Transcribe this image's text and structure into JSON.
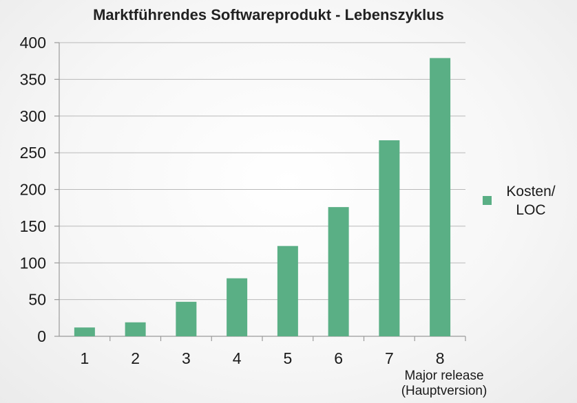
{
  "chart_data": {
    "type": "bar",
    "title": "Marktführendes Softwareprodukt - Lebenszyklus",
    "categories": [
      "1",
      "2",
      "3",
      "4",
      "5",
      "6",
      "7",
      "8"
    ],
    "series": [
      {
        "name": "Kosten/ LOC",
        "name_lines": [
          "Kosten/",
          "LOC"
        ],
        "values": [
          12,
          19,
          47,
          79,
          123,
          176,
          267,
          379
        ],
        "color": "#5aaf85"
      }
    ],
    "xlabel": "Major release (Hauptversion)",
    "xlabel_lines": [
      "Major release",
      "(Hauptversion)"
    ],
    "ylabel": "",
    "ylim": [
      0,
      400
    ],
    "yticks": [
      0,
      50,
      100,
      150,
      200,
      250,
      300,
      350,
      400
    ],
    "grid": true,
    "legend": "right"
  }
}
